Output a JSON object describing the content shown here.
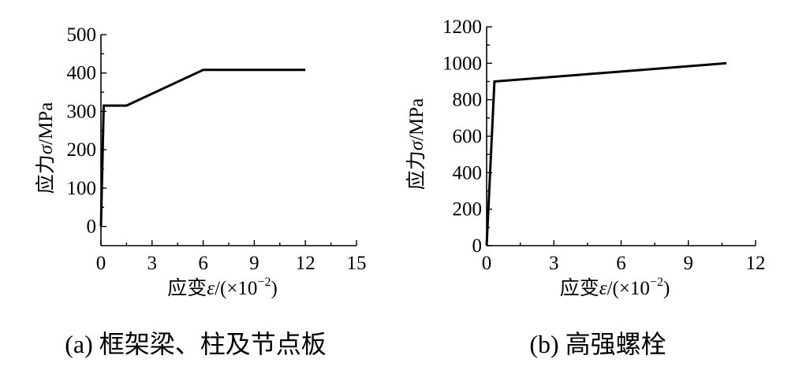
{
  "chart_data": [
    {
      "type": "line",
      "caption": "(a) 框架梁、柱及节点板",
      "xlabel_main": "应变",
      "xlabel_symbol": "ε",
      "xlabel_unit": "/(×10",
      "xlabel_exp": "−2",
      "xlabel_close": ")",
      "ylabel_main": "应力",
      "ylabel_symbol": "σ",
      "ylabel_unit": "/MPa",
      "xlim": [
        0,
        15
      ],
      "ylim": [
        -50,
        500
      ],
      "xticks": [
        0,
        3,
        6,
        9,
        12,
        15
      ],
      "yticks": [
        0,
        100,
        200,
        300,
        400,
        500
      ],
      "series": [
        {
          "x": [
            0,
            0.16,
            1.5,
            6,
            12
          ],
          "y": [
            0,
            315,
            315,
            408,
            408
          ]
        }
      ]
    },
    {
      "type": "line",
      "caption": "(b) 高强螺栓",
      "xlabel_main": "应变",
      "xlabel_symbol": "ε",
      "xlabel_unit": "/(×10",
      "xlabel_exp": "−2",
      "xlabel_close": ")",
      "ylabel_main": "应力",
      "ylabel_symbol": "σ",
      "ylabel_unit": "/MPa",
      "xlim": [
        0,
        12
      ],
      "ylim": [
        0,
        1200
      ],
      "xticks": [
        0,
        3,
        6,
        9,
        12
      ],
      "yticks": [
        0,
        200,
        400,
        600,
        800,
        1000,
        1200
      ],
      "series": [
        {
          "x": [
            0,
            0.35,
            10.7
          ],
          "y": [
            0,
            900,
            1000
          ]
        }
      ]
    }
  ]
}
